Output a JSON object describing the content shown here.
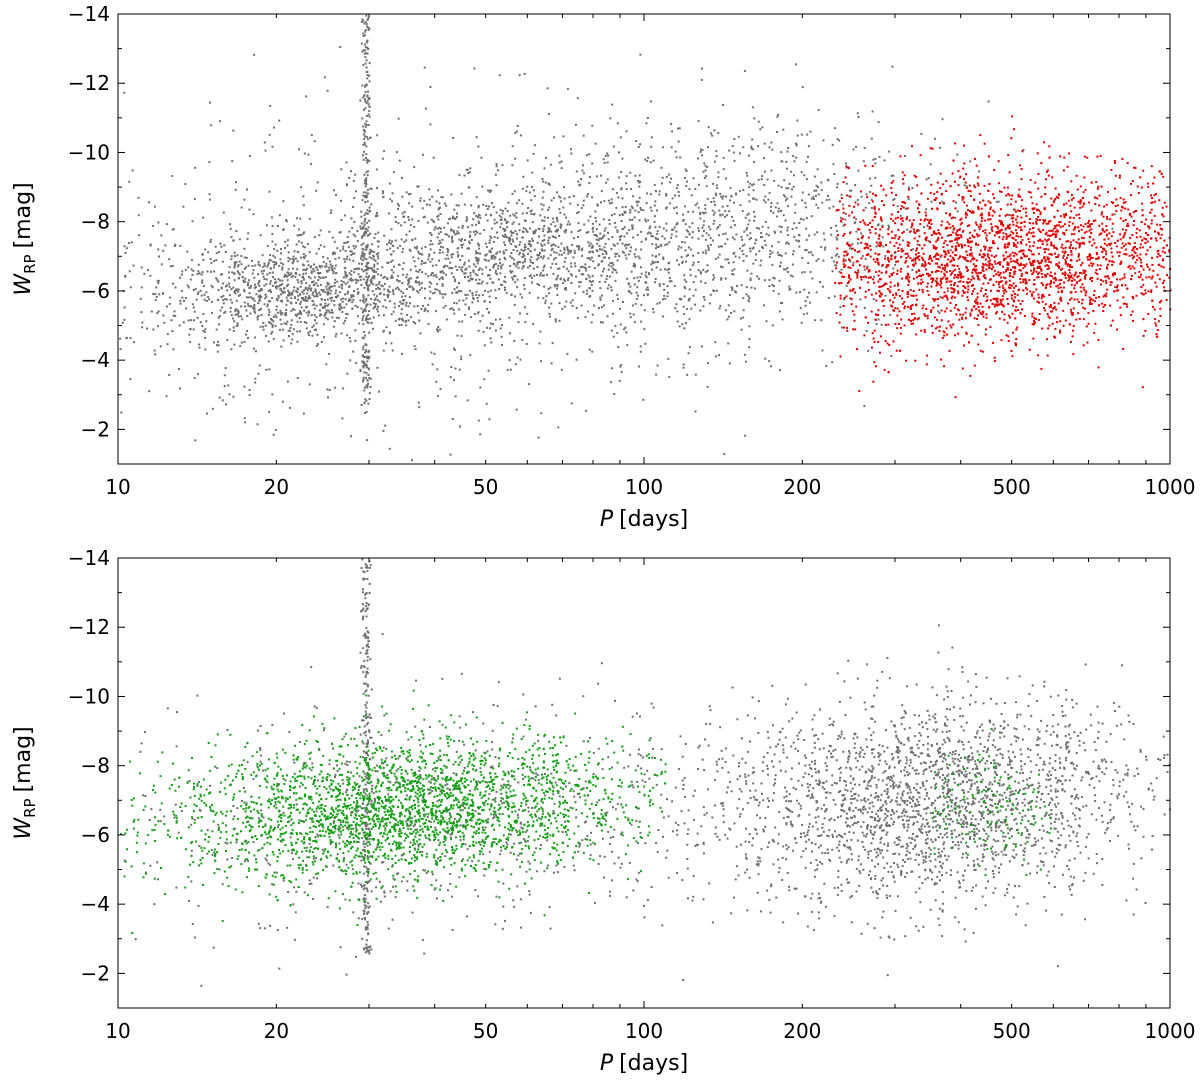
{
  "chart_data": [
    {
      "type": "scatter",
      "title": "",
      "xlabel": {
        "symbol": "P",
        "unit": "[days]"
      },
      "ylabel": {
        "symbol": "W",
        "subscript": "RP",
        "unit": "[mag]"
      },
      "xscale": "log",
      "xlim": [
        10,
        1000
      ],
      "ylim": [
        -1,
        -14
      ],
      "y_inverted": true,
      "xticks": [
        {
          "value": 10,
          "label": "10"
        },
        {
          "value": 20,
          "label": "20"
        },
        {
          "value": 50,
          "label": "50"
        },
        {
          "value": 100,
          "label": "100"
        },
        {
          "value": 200,
          "label": "200"
        },
        {
          "value": 500,
          "label": "500"
        },
        {
          "value": 1000,
          "label": "1000"
        }
      ],
      "yticks": [
        {
          "value": -2,
          "label": "−2"
        },
        {
          "value": -4,
          "label": "−4"
        },
        {
          "value": -6,
          "label": "−6"
        },
        {
          "value": -8,
          "label": "−8"
        },
        {
          "value": -10,
          "label": "−10"
        },
        {
          "value": -12,
          "label": "−12"
        },
        {
          "value": -14,
          "label": "−14"
        }
      ],
      "grid": false,
      "legend": "none",
      "series": [
        {
          "color": "#6e6e6e",
          "description_points": "dense cloud; ridge from (18,-6.0) rising to (60,-7.3) and (200,-8.0); broad spread -2 to -14",
          "components": [
            {
              "x_range": [
                10,
                1000
              ],
              "center_x": 22,
              "center_y": -6.1,
              "sigma_logx": 0.13,
              "sigma_y": 0.7,
              "weight": 0.18
            },
            {
              "x_range": [
                10,
                1000
              ],
              "center_x": 55,
              "center_y": -7.2,
              "sigma_logx": 0.18,
              "sigma_y": 1.0,
              "weight": 0.22
            },
            {
              "x_range": [
                10,
                1000
              ],
              "center_x": 150,
              "center_y": -7.8,
              "sigma_logx": 0.2,
              "sigma_y": 1.6,
              "weight": 0.2
            },
            {
              "x_range": [
                10,
                1000
              ],
              "center_x": 30,
              "center_y": -6.5,
              "sigma_logx": 0.35,
              "sigma_y": 2.4,
              "weight": 0.15
            }
          ]
        },
        {
          "color": "#e00000",
          "description_points": "red points confined to P > 230 days, centered near W = -7",
          "components": [
            {
              "x_range": [
                230,
                1000
              ],
              "center_x": 480,
              "center_y": -7.0,
              "sigma_logx": 0.22,
              "sigma_y": 1.2,
              "weight": 0.9
            }
          ]
        }
      ]
    },
    {
      "type": "scatter",
      "title": "",
      "xlabel": {
        "symbol": "P",
        "unit": "[days]"
      },
      "ylabel": {
        "symbol": "W",
        "subscript": "RP",
        "unit": "[mag]"
      },
      "xscale": "log",
      "xlim": [
        10,
        1000
      ],
      "ylim": [
        -1,
        -14
      ],
      "y_inverted": true,
      "xticks": [
        {
          "value": 10,
          "label": "10"
        },
        {
          "value": 20,
          "label": "20"
        },
        {
          "value": 50,
          "label": "50"
        },
        {
          "value": 100,
          "label": "100"
        },
        {
          "value": 200,
          "label": "200"
        },
        {
          "value": 500,
          "label": "500"
        },
        {
          "value": 1000,
          "label": "1000"
        }
      ],
      "yticks": [
        {
          "value": -2,
          "label": "−2"
        },
        {
          "value": -4,
          "label": "−4"
        },
        {
          "value": -6,
          "label": "−6"
        },
        {
          "value": -8,
          "label": "−8"
        },
        {
          "value": -10,
          "label": "−10"
        },
        {
          "value": -12,
          "label": "−12"
        },
        {
          "value": -14,
          "label": "−14"
        }
      ],
      "grid": false,
      "legend": "none",
      "series": [
        {
          "color": "#6e6e6e",
          "description_points": "gray cloud dominant at P > 100 days, centered near (350,-7), spread -2 to -14",
          "components": [
            {
              "x_range": [
                10,
                1000
              ],
              "center_x": 350,
              "center_y": -7.0,
              "sigma_logx": 0.2,
              "sigma_y": 1.5,
              "weight": 0.45
            },
            {
              "x_range": [
                10,
                1000
              ],
              "center_x": 40,
              "center_y": -6.6,
              "sigma_logx": 0.3,
              "sigma_y": 1.6,
              "weight": 0.15
            }
          ]
        },
        {
          "color": "#14a014",
          "description_points": "green ridge from (18,-6.2) rising to (80,-7.7), mostly P < 110 days",
          "components": [
            {
              "x_range": [
                10,
                110
              ],
              "center_x": 35,
              "center_y": -6.8,
              "sigma_logx": 0.22,
              "sigma_y": 1.0,
              "weight": 0.85
            },
            {
              "x_range": [
                350,
                600
              ],
              "center_x": 450,
              "center_y": -6.8,
              "sigma_logx": 0.08,
              "sigma_y": 0.8,
              "weight": 0.05
            }
          ]
        }
      ]
    }
  ]
}
